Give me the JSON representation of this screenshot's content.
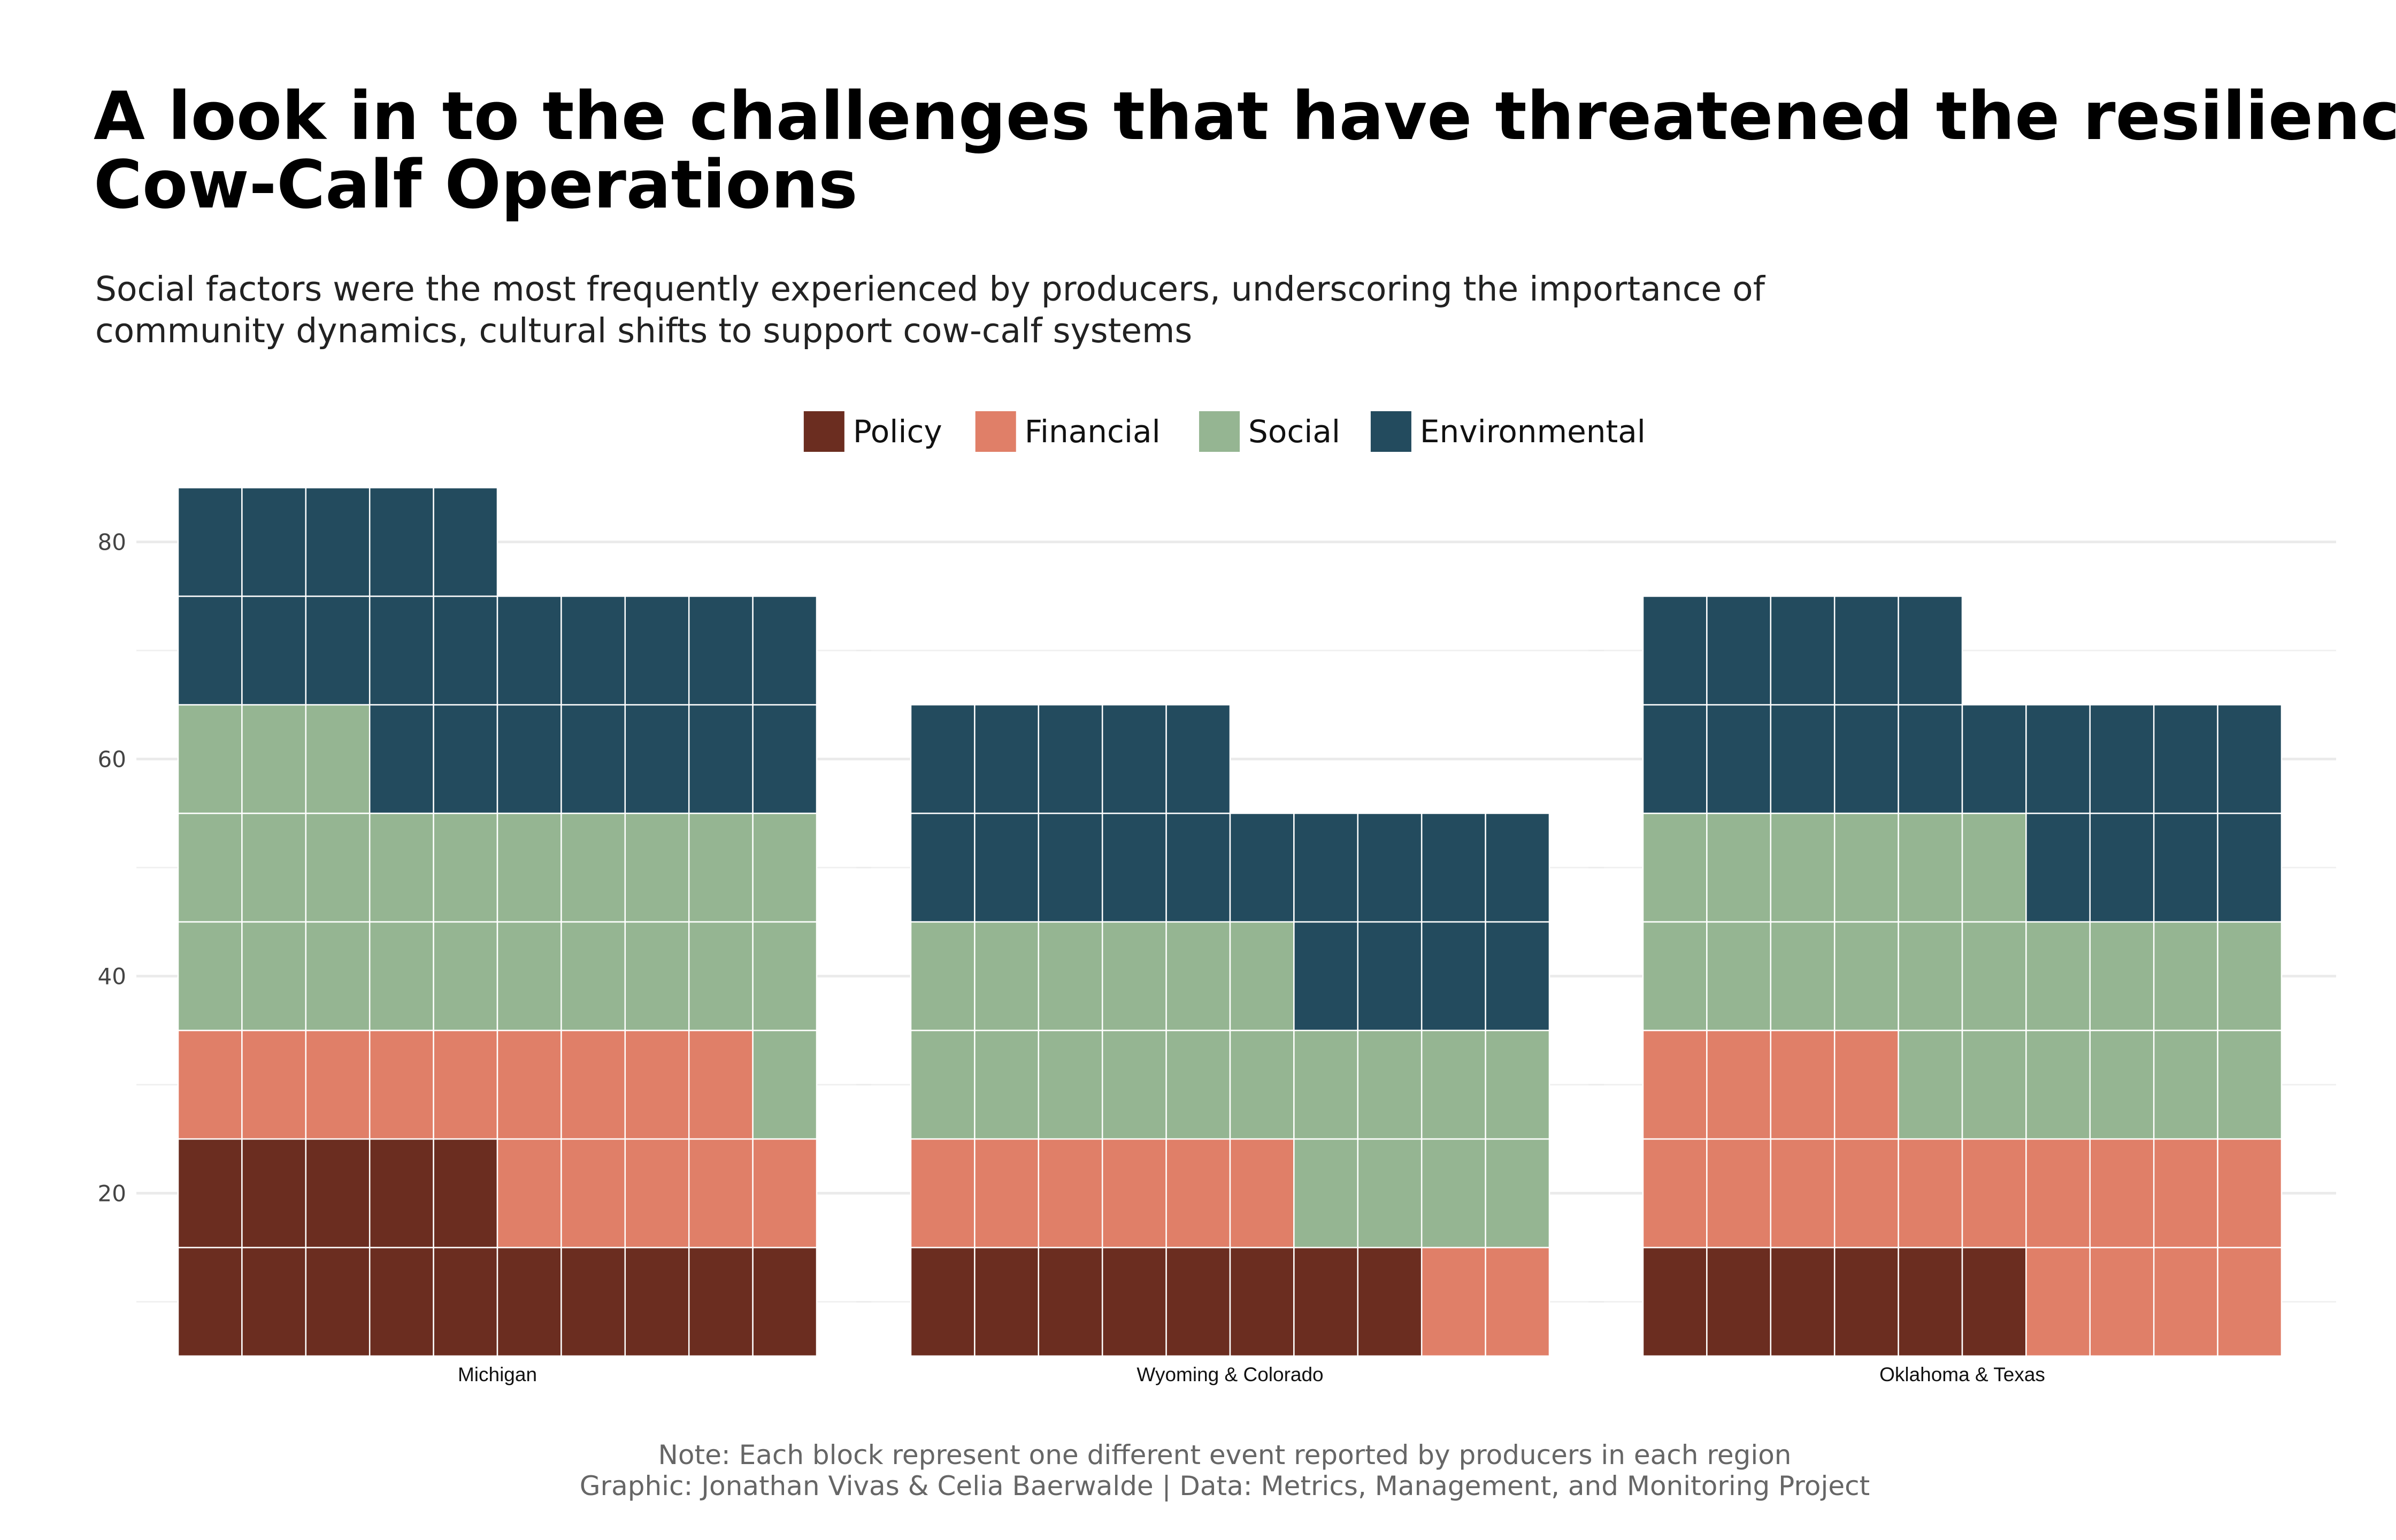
{
  "title_lines": [
    "A look in to the challenges that have threatened the resilience of",
    "Cow-Calf Operations"
  ],
  "subtitle_lines": [
    "Social factors were the most frequently experienced by producers, underscoring the importance of",
    "community dynamics, cultural shifts to support cow-calf systems"
  ],
  "caption_lines": [
    "Note: Each block represent one different event reported by producers in each region",
    "Graphic: Jonathan Vivas & Celia Baerwalde | Data: Metrics, Management, and Monitoring Project"
  ],
  "colors": {
    "Policy": "#6B2D20",
    "Financial": "#E07F68",
    "Social": "#95B592",
    "Environmental": "#234B5E",
    "grid": "#EBEBEB"
  },
  "chart_data": {
    "type": "waffle",
    "units_per_block": 1,
    "columns_per_panel": 10,
    "block_height_units": 10,
    "categories": [
      "Policy",
      "Financial",
      "Social",
      "Environmental"
    ],
    "ylim": [
      5,
      85
    ],
    "y_ticks": [
      20,
      40,
      60,
      80
    ],
    "panels": [
      {
        "name": "Michigan",
        "counts": {
          "Policy": 15,
          "Financial": 14,
          "Social": 24,
          "Environmental": 22
        }
      },
      {
        "name": "Wyoming & Colorado",
        "counts": {
          "Policy": 8,
          "Financial": 8,
          "Social": 20,
          "Environmental": 19
        }
      },
      {
        "name": "Oklahoma & Texas",
        "counts": {
          "Policy": 6,
          "Financial": 18,
          "Social": 22,
          "Environmental": 19
        }
      }
    ]
  }
}
